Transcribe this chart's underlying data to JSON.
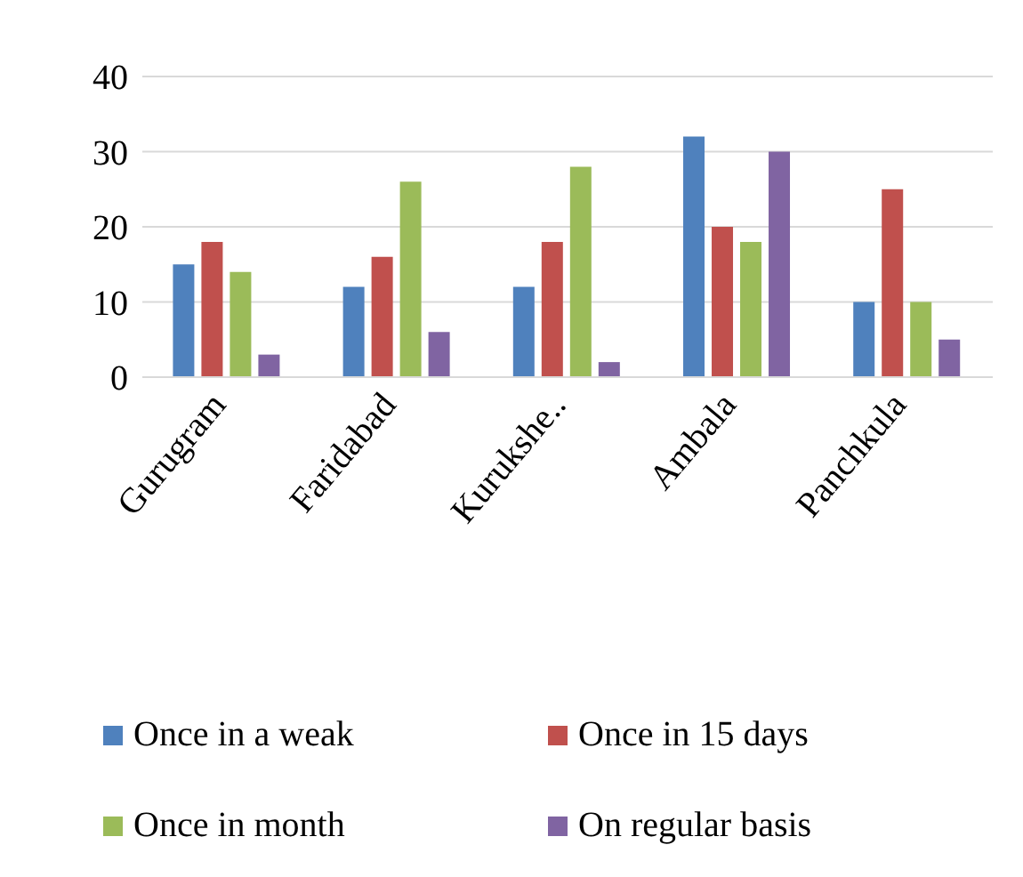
{
  "chart_data": {
    "type": "bar",
    "categories": [
      "Gurugram",
      "Faridabad",
      "Kurukshe..",
      "Ambala",
      "Panchkula"
    ],
    "series": [
      {
        "name": "Once in a weak",
        "color": "#4f81bd",
        "values": [
          15,
          12,
          12,
          32,
          10
        ]
      },
      {
        "name": "Once in 15 days",
        "color": "#c0504d",
        "values": [
          18,
          16,
          18,
          20,
          25
        ]
      },
      {
        "name": "Once in month",
        "color": "#9bbb59",
        "values": [
          14,
          26,
          28,
          18,
          10
        ]
      },
      {
        "name": "On regular basis",
        "color": "#8064a2",
        "values": [
          3,
          6,
          2,
          30,
          5
        ]
      }
    ],
    "ylim": [
      0,
      40
    ],
    "yticks": [
      0,
      10,
      20,
      30,
      40
    ],
    "grid": "y",
    "legend": "bottom"
  }
}
